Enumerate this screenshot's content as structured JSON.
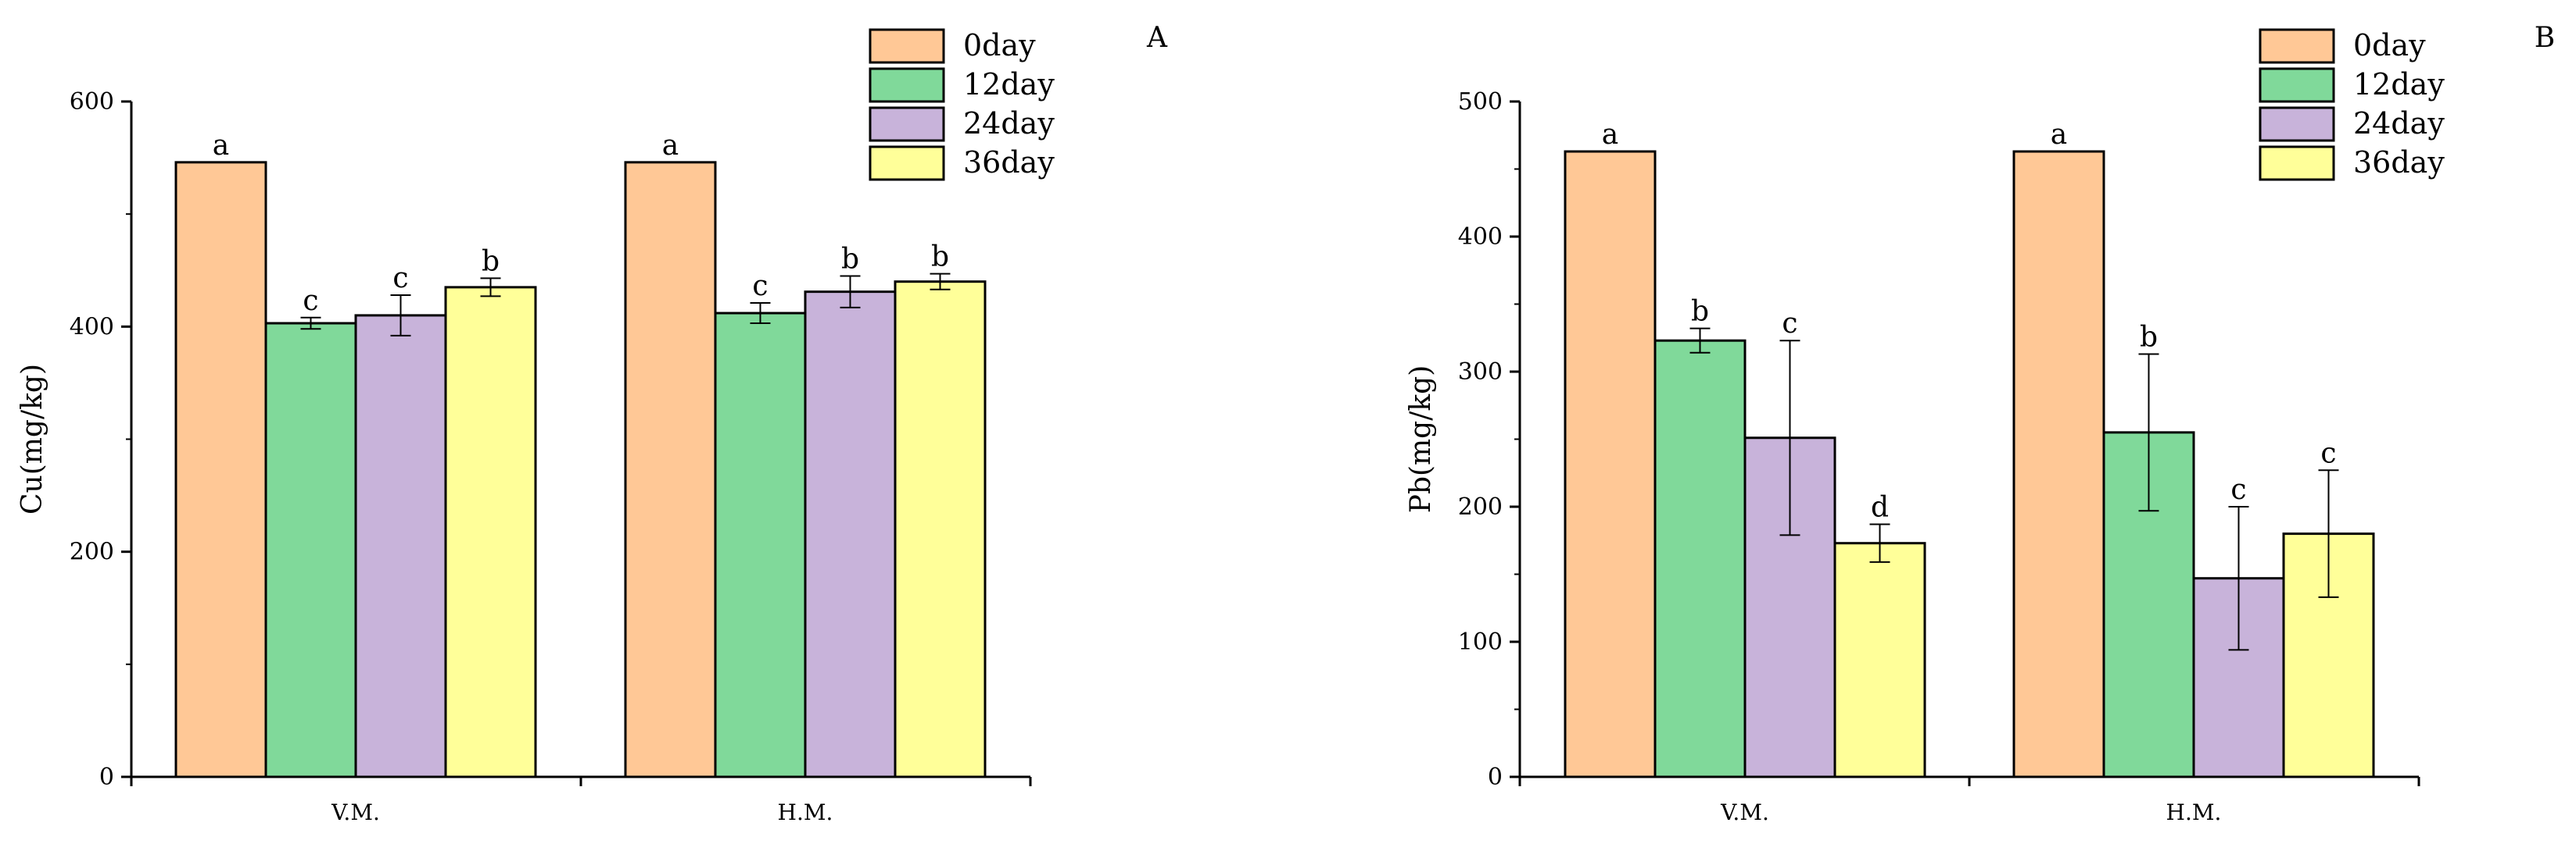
{
  "chart_data": [
    {
      "type": "bar",
      "panel_label": "A",
      "ylabel": "Cu(mg/kg)",
      "xlabel": "",
      "categories": [
        "V.M.",
        "H.M."
      ],
      "ylim": [
        0,
        600
      ],
      "yticks": [
        0,
        200,
        400,
        600
      ],
      "legend": "top-right",
      "series": [
        {
          "name": "0day",
          "color": "#FFC896",
          "values": [
            546,
            546
          ],
          "errors": [
            0,
            0
          ],
          "letters": [
            "a",
            "a"
          ]
        },
        {
          "name": "12day",
          "color": "#80D99A",
          "values": [
            403,
            412
          ],
          "errors": [
            5,
            9
          ],
          "letters": [
            "c",
            "c"
          ]
        },
        {
          "name": "24day",
          "color": "#C8B3DA",
          "values": [
            410,
            431
          ],
          "errors": [
            18,
            14
          ],
          "letters": [
            "c",
            "b"
          ]
        },
        {
          "name": "36day",
          "color": "#FFFF99",
          "values": [
            435,
            440
          ],
          "errors": [
            8,
            7
          ],
          "letters": [
            "b",
            "b"
          ]
        }
      ]
    },
    {
      "type": "bar",
      "panel_label": "B",
      "ylabel": "Pb(mg/kg)",
      "xlabel": "",
      "categories": [
        "V.M.",
        "H.M."
      ],
      "ylim": [
        0,
        500
      ],
      "yticks": [
        0,
        100,
        200,
        300,
        400,
        500
      ],
      "legend": "top-right",
      "series": [
        {
          "name": "0day",
          "color": "#FFC896",
          "values": [
            463,
            463
          ],
          "errors": [
            0,
            0
          ],
          "letters": [
            "a",
            "a"
          ]
        },
        {
          "name": "12day",
          "color": "#80D99A",
          "values": [
            323,
            255
          ],
          "errors": [
            9,
            58
          ],
          "letters": [
            "b",
            "b"
          ]
        },
        {
          "name": "24day",
          "color": "#C8B3DA",
          "values": [
            251,
            147
          ],
          "errors": [
            72,
            53
          ],
          "letters": [
            "c",
            "c"
          ]
        },
        {
          "name": "36day",
          "color": "#FFFF99",
          "values": [
            173,
            180
          ],
          "errors": [
            14,
            47
          ],
          "letters": [
            "d",
            "c"
          ]
        }
      ]
    }
  ]
}
